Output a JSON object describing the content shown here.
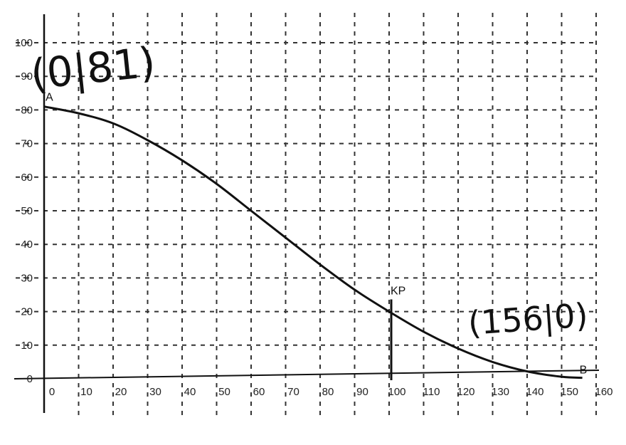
{
  "chart_data": {
    "type": "line",
    "xlim": [
      0,
      160
    ],
    "ylim": [
      0,
      100
    ],
    "x_ticks": [
      0,
      10,
      20,
      30,
      40,
      50,
      60,
      70,
      80,
      90,
      100,
      110,
      120,
      130,
      140,
      150,
      160
    ],
    "y_ticks": [
      0,
      10,
      20,
      30,
      40,
      50,
      60,
      70,
      80,
      90,
      100
    ],
    "x_tick_labels": [
      "0",
      "10",
      "20",
      "30",
      "40",
      "50",
      "60",
      "70",
      "80",
      "90",
      "100",
      "110",
      "120",
      "130",
      "140",
      "150",
      "160"
    ],
    "y_tick_labels": [
      "0",
      "10",
      "20",
      "30",
      "40",
      "50",
      "60",
      "70",
      "80",
      "90",
      "100"
    ],
    "grid": true,
    "series": [
      {
        "x": [
          0,
          10,
          20,
          30,
          40,
          50,
          60,
          70,
          80,
          90,
          100,
          110,
          120,
          130,
          140,
          150,
          156
        ],
        "y": [
          81,
          79,
          76,
          71,
          65,
          58,
          50,
          42,
          34,
          26.5,
          20,
          14,
          9,
          5,
          2.2,
          0.6,
          0.3
        ]
      }
    ],
    "points": [
      {
        "label": "A",
        "x": 0,
        "y": 81
      },
      {
        "label": "B",
        "x": 156,
        "y": 0.3
      }
    ],
    "marker": {
      "label": "KP",
      "x": 100,
      "y": 23
    },
    "annotations": [
      {
        "text": "(0|81)",
        "x": 10,
        "y": 90
      },
      {
        "text": "(156|0)",
        "x": 138,
        "y": 15
      }
    ]
  }
}
